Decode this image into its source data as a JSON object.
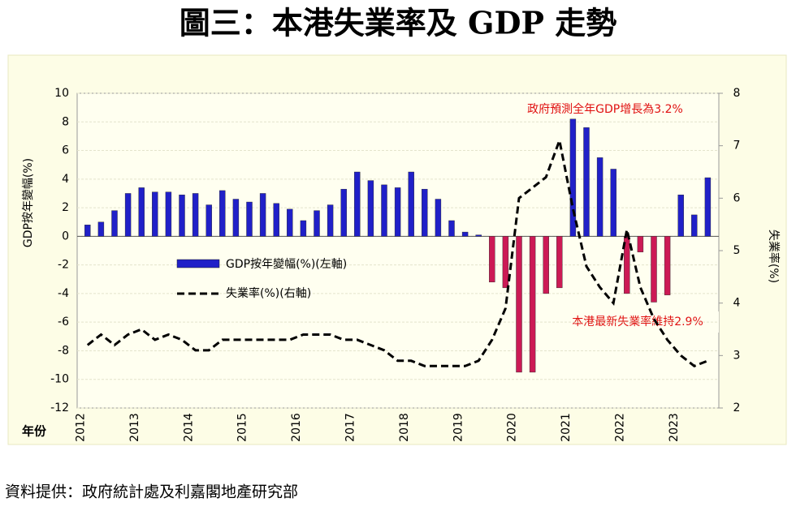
{
  "chart_data": {
    "type": "bar_line",
    "title": "圖三：本港失業率及 GDP 走勢",
    "y_label": "GDP按年變幅(%)",
    "y2_label": "失業率(%)",
    "x_label": "年份",
    "source": "資料提供：政府統計處及利嘉閣地產研究部",
    "annotations": [
      "政府預測全年GDP增長為3.2%",
      "本港最新失業率維持2.9%"
    ],
    "categories": [
      "2012",
      null,
      null,
      null,
      "2013",
      null,
      null,
      null,
      "2014",
      null,
      null,
      null,
      "2015",
      null,
      null,
      null,
      "2016",
      null,
      null,
      null,
      "2017",
      null,
      null,
      null,
      "2018",
      null,
      null,
      null,
      "2019",
      null,
      null,
      null,
      "2020",
      null,
      null,
      null,
      "2021",
      null,
      null,
      null,
      "2022",
      null,
      null,
      null,
      "2023",
      null,
      null
    ],
    "series": [
      {
        "name": "GDP按年變幅(%)(左軸)",
        "color": "#2020c8",
        "negative_color": "#cc1a55",
        "values": [
          0.8,
          1.0,
          1.8,
          3.0,
          3.4,
          3.1,
          3.1,
          2.9,
          3.0,
          2.2,
          3.2,
          2.6,
          2.4,
          3.0,
          2.3,
          1.9,
          1.1,
          1.8,
          2.2,
          3.3,
          4.5,
          3.9,
          3.6,
          3.4,
          4.5,
          3.3,
          2.6,
          1.1,
          0.3,
          0.1,
          -3.2,
          -3.6,
          -9.5,
          -9.5,
          -4.0,
          -3.6,
          8.2,
          7.6,
          5.5,
          4.7,
          -4.0,
          -1.1,
          -4.6,
          -4.1,
          2.9,
          1.5,
          4.1
        ]
      },
      {
        "name": "失業率(%)(右軸)",
        "color": "#000000",
        "axis": "y2",
        "values": [
          3.2,
          3.4,
          3.2,
          3.4,
          3.5,
          3.3,
          3.4,
          3.3,
          3.1,
          3.1,
          3.3,
          3.3,
          3.3,
          3.3,
          3.3,
          3.3,
          3.4,
          3.4,
          3.4,
          3.3,
          3.3,
          3.2,
          3.1,
          2.9,
          2.9,
          2.8,
          2.8,
          2.8,
          2.8,
          2.9,
          3.3,
          3.9,
          6.0,
          6.2,
          6.4,
          7.1,
          5.8,
          4.7,
          4.3,
          4.0,
          5.4,
          4.3,
          3.7,
          3.3,
          3.0,
          2.8,
          2.9
        ]
      }
    ],
    "ylim": [
      -12,
      10
    ],
    "yticks": [
      -12,
      -10,
      -8,
      -6,
      -4,
      -2,
      0,
      2,
      4,
      6,
      8,
      10
    ],
    "y2lim": [
      2,
      8
    ],
    "y2ticks": [
      2,
      3,
      4,
      5,
      6,
      7,
      8
    ],
    "grid": true
  }
}
